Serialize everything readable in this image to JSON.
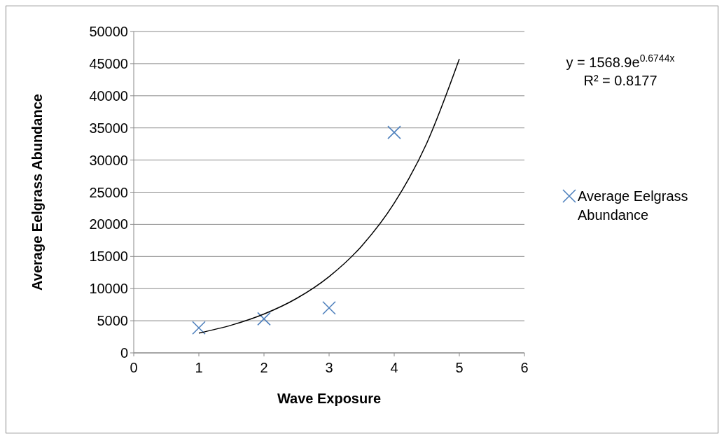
{
  "chart_data": {
    "type": "scatter",
    "xlabel": "Wave Exposure",
    "ylabel": "Average Eelgrass Abundance",
    "xlim": [
      0,
      6
    ],
    "xticks": [
      0,
      1,
      2,
      3,
      4,
      5,
      6
    ],
    "ylim": [
      0,
      50000
    ],
    "yticks": [
      0,
      5000,
      10000,
      15000,
      20000,
      25000,
      30000,
      35000,
      40000,
      45000,
      50000
    ],
    "grid": "y",
    "legend": "right",
    "marker": "cross",
    "series": [
      {
        "name": "Average Eelgrass Abundance",
        "color": "#4f81bd",
        "x": [
          1,
          2,
          3,
          4
        ],
        "values": [
          3900,
          5300,
          7000,
          34300
        ]
      },
      {
        "type": "line",
        "color": "#000000",
        "marker": "none",
        "line_style": "solid",
        "x": [
          1,
          1.5,
          2,
          2.5,
          3,
          3.5,
          4,
          4.5,
          5
        ],
        "values": [
          3080,
          4314,
          6045,
          8469,
          11866,
          16623,
          23289,
          32629,
          45718
        ]
      }
    ],
    "annotations": [
      "y = 1568.9e$^{0.6744x}$",
      "R² = 0.8177"
    ]
  }
}
